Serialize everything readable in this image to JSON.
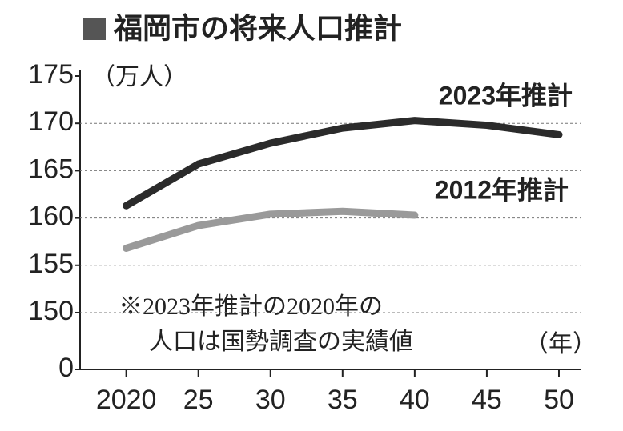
{
  "chart_data": {
    "type": "line",
    "title": "福岡市の将来人口推計",
    "y_label": "（万人）",
    "x_label": "（年）",
    "annotation": [
      "※2023年推計の2020年の",
      "人口は国勢調査の実績値"
    ],
    "x": [
      2020,
      2025,
      2030,
      2035,
      2040,
      2045,
      2050
    ],
    "series": [
      {
        "name": "2023年推計",
        "color": "#2b2b2b",
        "values": [
          161.3,
          165.7,
          167.9,
          169.5,
          170.3,
          169.8,
          168.8
        ]
      },
      {
        "name": "2012年推計",
        "color": "#9a9a9a",
        "values": [
          156.8,
          159.2,
          160.4,
          160.7,
          160.3,
          null,
          null
        ]
      }
    ],
    "xlim": [
      2016.8,
      2051.5
    ],
    "xticks": [
      {
        "value": 2020,
        "label": "2020"
      },
      {
        "value": 2025,
        "label": "25"
      },
      {
        "value": 2030,
        "label": "30"
      },
      {
        "value": 2035,
        "label": "35"
      },
      {
        "value": 2040,
        "label": "40"
      },
      {
        "value": 2045,
        "label": "45"
      },
      {
        "value": 2050,
        "label": "50"
      }
    ],
    "ylim": [
      144,
      175
    ],
    "yticks": [
      175,
      170,
      165,
      160,
      155,
      150,
      0
    ],
    "axis_break": true,
    "grid": true
  }
}
